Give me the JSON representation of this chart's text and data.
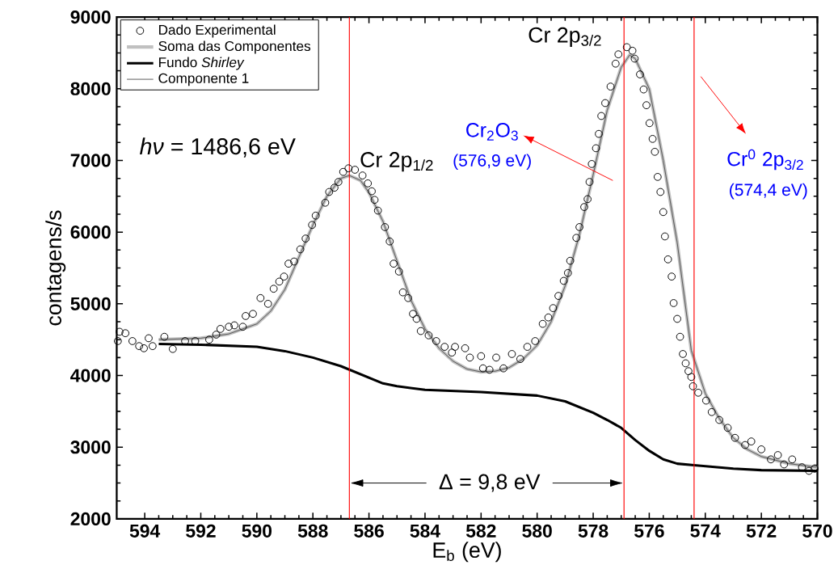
{
  "chart_data": {
    "type": "scatter",
    "xlabel": "E$_{b}$ (eV)",
    "ylabel": "contagens/s",
    "xlim": [
      595,
      570
    ],
    "ylim": [
      2000,
      9000
    ],
    "xticks": [
      594,
      592,
      590,
      588,
      586,
      584,
      582,
      580,
      578,
      576,
      574,
      572,
      570
    ],
    "yticks": [
      2000,
      3000,
      4000,
      5000,
      6000,
      7000,
      8000,
      9000
    ],
    "legend": "top left",
    "grid": false,
    "series": [
      {
        "name": "Dado Experimental",
        "type": "scatter",
        "marker": "circle",
        "color": "#000000",
        "x": [
          594.96,
          594.9,
          594.69,
          594.44,
          594.2,
          594.03,
          593.86,
          593.72,
          593.3,
          593.0,
          592.56,
          592.2,
          591.7,
          591.45,
          591.3,
          591.0,
          590.8,
          590.5,
          590.4,
          590.14,
          589.87,
          589.6,
          589.4,
          589.2,
          589.03,
          588.87,
          588.67,
          588.45,
          588.26,
          588.03,
          587.9,
          587.56,
          587.42,
          587.23,
          587.09,
          586.92,
          586.73,
          586.5,
          586.23,
          586.04,
          585.9,
          585.8,
          585.68,
          585.43,
          585.26,
          585.12,
          584.93,
          584.79,
          584.6,
          584.43,
          584.3,
          584.15,
          583.87,
          583.6,
          583.3,
          583.04,
          582.93,
          582.57,
          582.4,
          582.0,
          581.93,
          581.7,
          581.46,
          581.2,
          580.9,
          580.6,
          580.35,
          580.07,
          579.8,
          579.6,
          579.43,
          579.24,
          579.05,
          578.9,
          578.82,
          578.6,
          578.49,
          578.32,
          578.2,
          578.13,
          578.05,
          577.9,
          577.8,
          577.71,
          577.57,
          577.38,
          577.2,
          577.1,
          576.8,
          576.6,
          576.52,
          576.33,
          576.2,
          576.1,
          575.99,
          575.88,
          575.8,
          575.7,
          575.6,
          575.5,
          575.44,
          575.33,
          575.2,
          575.13,
          575.0,
          574.9,
          574.8,
          574.7,
          574.6,
          574.5,
          574.44,
          574.25,
          573.97,
          573.77,
          573.5,
          573.2,
          572.94,
          572.58,
          572.36,
          572.0,
          571.66,
          571.41,
          571.19,
          570.9,
          570.55,
          570.3,
          570.1
        ],
        "values": [
          4480,
          4610,
          4590,
          4480,
          4410,
          4380,
          4520,
          4410,
          4540,
          4370,
          4480,
          4480,
          4500,
          4570,
          4650,
          4680,
          4700,
          4680,
          4830,
          4860,
          5080,
          5000,
          5210,
          5310,
          5380,
          5560,
          5590,
          5760,
          5910,
          6100,
          6230,
          6410,
          6560,
          6620,
          6700,
          6840,
          6890,
          6870,
          6790,
          6680,
          6570,
          6450,
          6300,
          6070,
          5870,
          5560,
          5450,
          5160,
          5080,
          4860,
          4790,
          4620,
          4560,
          4480,
          4400,
          4320,
          4400,
          4380,
          4250,
          4270,
          4100,
          4080,
          4250,
          4100,
          4300,
          4230,
          4400,
          4480,
          4720,
          4810,
          4940,
          5110,
          5320,
          5430,
          5600,
          5920,
          6070,
          6350,
          6460,
          6700,
          6950,
          7170,
          7370,
          7620,
          7800,
          8030,
          8350,
          8480,
          8580,
          8530,
          8420,
          8200,
          7990,
          7770,
          7520,
          7300,
          7120,
          6770,
          6560,
          6280,
          5940,
          5620,
          5380,
          5010,
          4790,
          4540,
          4300,
          4170,
          4060,
          3980,
          3850,
          3760,
          3650,
          3490,
          3380,
          3270,
          3130,
          3030,
          3080,
          2970,
          2830,
          2890,
          2760,
          2830,
          2720,
          2670,
          2700
        ]
      },
      {
        "name": "Soma das Componentes",
        "type": "line",
        "color": "#c0c0c0",
        "x": [
          593.5,
          592,
          591,
          590,
          589.5,
          589,
          588.5,
          588,
          587.5,
          587,
          586.7,
          586.3,
          586,
          585.5,
          585,
          584.5,
          584,
          583.5,
          583,
          582.5,
          582,
          581.5,
          581,
          580.5,
          580,
          579.5,
          579,
          578.5,
          578,
          577.5,
          577,
          576.7,
          576.5,
          576,
          575.5,
          575,
          574.5,
          574,
          573.5,
          573,
          572.5,
          572,
          571,
          570
        ],
        "values": [
          4500,
          4520,
          4580,
          4720,
          4900,
          5200,
          5650,
          6100,
          6500,
          6750,
          6790,
          6720,
          6550,
          6150,
          5600,
          5050,
          4650,
          4380,
          4200,
          4090,
          4050,
          4060,
          4110,
          4230,
          4420,
          4750,
          5250,
          5950,
          6800,
          7700,
          8300,
          8470,
          8420,
          8000,
          7000,
          5850,
          4350,
          3750,
          3400,
          3130,
          2970,
          2870,
          2770,
          2720
        ]
      },
      {
        "name": "Fundo *Shirley*",
        "type": "line",
        "color": "#000000",
        "x": [
          593.5,
          592,
          590,
          589,
          588,
          587,
          586,
          585.5,
          585,
          584,
          582,
          580,
          579,
          578,
          577.5,
          577,
          576.5,
          576,
          575.5,
          575,
          574.4,
          573,
          572,
          570
        ],
        "values": [
          4440,
          4430,
          4400,
          4340,
          4250,
          4130,
          3970,
          3890,
          3850,
          3800,
          3770,
          3720,
          3640,
          3480,
          3380,
          3270,
          3100,
          2950,
          2830,
          2770,
          2750,
          2700,
          2680,
          2670
        ]
      },
      {
        "name": "Componente 1",
        "type": "line",
        "color": "#555555",
        "x": [
          593.5,
          592,
          591,
          590,
          589.5,
          589,
          588.5,
          588,
          587.5,
          587,
          586.7,
          586.3,
          586,
          585.5,
          585,
          584.5,
          584,
          583.5,
          583,
          582.5,
          582,
          581.5,
          581,
          580.5,
          580,
          579.5,
          579,
          578.5,
          578,
          577.5,
          577,
          576.7,
          576.5,
          576,
          575.5,
          575,
          574.5,
          574,
          573.5,
          573,
          572.5,
          572,
          571,
          570
        ],
        "values": [
          4500,
          4520,
          4580,
          4720,
          4900,
          5200,
          5650,
          6100,
          6500,
          6750,
          6790,
          6720,
          6550,
          6150,
          5600,
          5050,
          4650,
          4380,
          4200,
          4090,
          4050,
          4060,
          4110,
          4230,
          4420,
          4750,
          5250,
          5950,
          6800,
          7700,
          8300,
          8470,
          8420,
          8000,
          7000,
          5850,
          4350,
          3750,
          3400,
          3130,
          2970,
          2870,
          2770,
          2720
        ]
      }
    ],
    "ref_lines": [
      {
        "axis": "x",
        "value": 586.7,
        "color": "#ff0000"
      },
      {
        "axis": "x",
        "value": 576.9,
        "color": "#ff0000"
      },
      {
        "axis": "x",
        "value": 574.4,
        "color": "#ff0000"
      }
    ],
    "annotations": [
      "Cr 2p$_{3/2}$",
      "Cr 2p$_{1/2}$",
      "*hν* = 1486,6 eV",
      "Cr$_{2}$O$_{3}$",
      "(576,9 eV)",
      "Cr$^{0}$ 2p$_{3/2}$",
      "(574,4 eV)",
      "Δ = 9,8 eV"
    ]
  }
}
